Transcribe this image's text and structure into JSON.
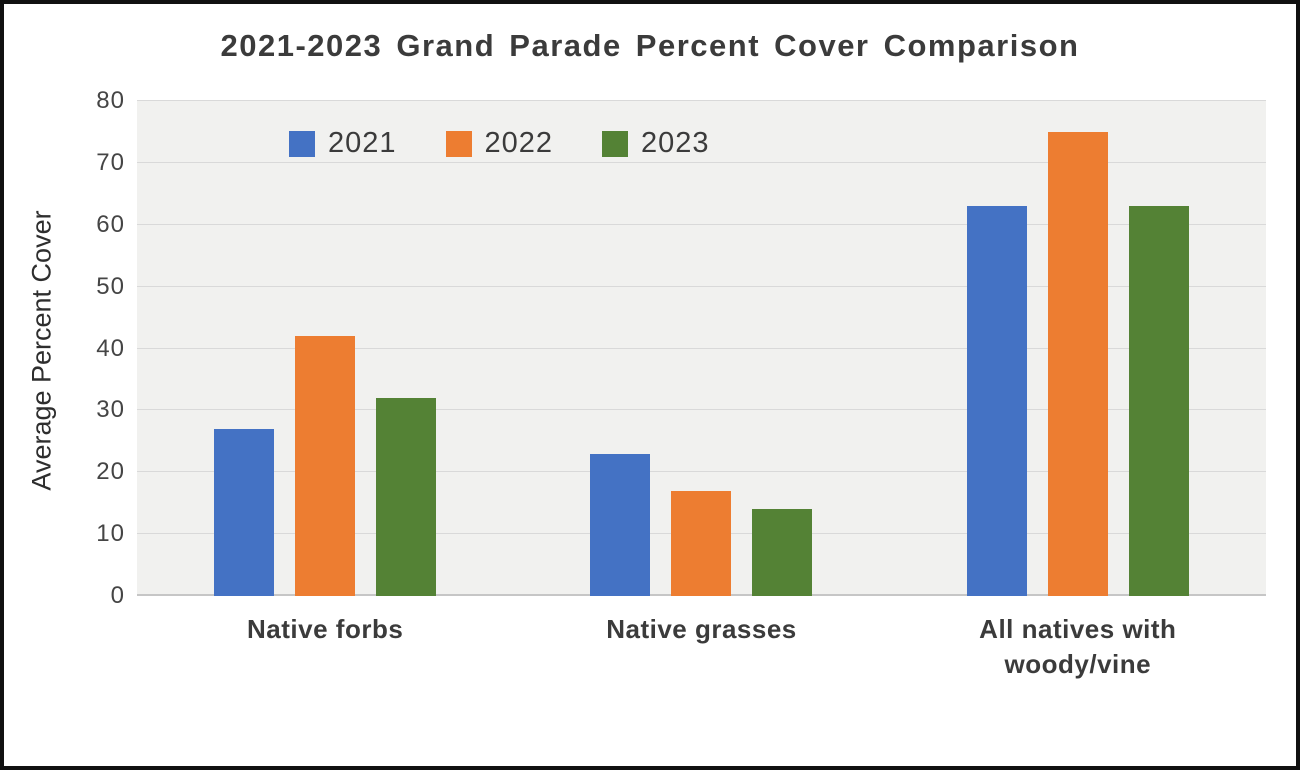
{
  "chart_data": {
    "type": "bar",
    "title": "2021-2023 Grand Parade Percent Cover Comparison",
    "ylabel": "Average Percent Cover",
    "xlabel": "",
    "categories": [
      "Native forbs",
      "Native grasses",
      "All natives with woody/vine"
    ],
    "series": [
      {
        "name": "2021",
        "color": "#4472C4",
        "values": [
          27,
          23,
          63
        ]
      },
      {
        "name": "2022",
        "color": "#ED7D31",
        "values": [
          42,
          17,
          75
        ]
      },
      {
        "name": "2023",
        "color": "#548235",
        "values": [
          32,
          14,
          63
        ]
      }
    ],
    "ylim": [
      0,
      80
    ],
    "yticks": [
      0,
      10,
      20,
      30,
      40,
      50,
      60,
      70,
      80
    ],
    "grid": "horizontal-on",
    "legend_position": "top-left-inside",
    "colors": {
      "plot_background": "#f1f1ef",
      "gridline": "#d9d9d9",
      "axis_line": "#c6c6c6",
      "title_text": "#3b3b3b",
      "tick_text": "#454545"
    }
  }
}
